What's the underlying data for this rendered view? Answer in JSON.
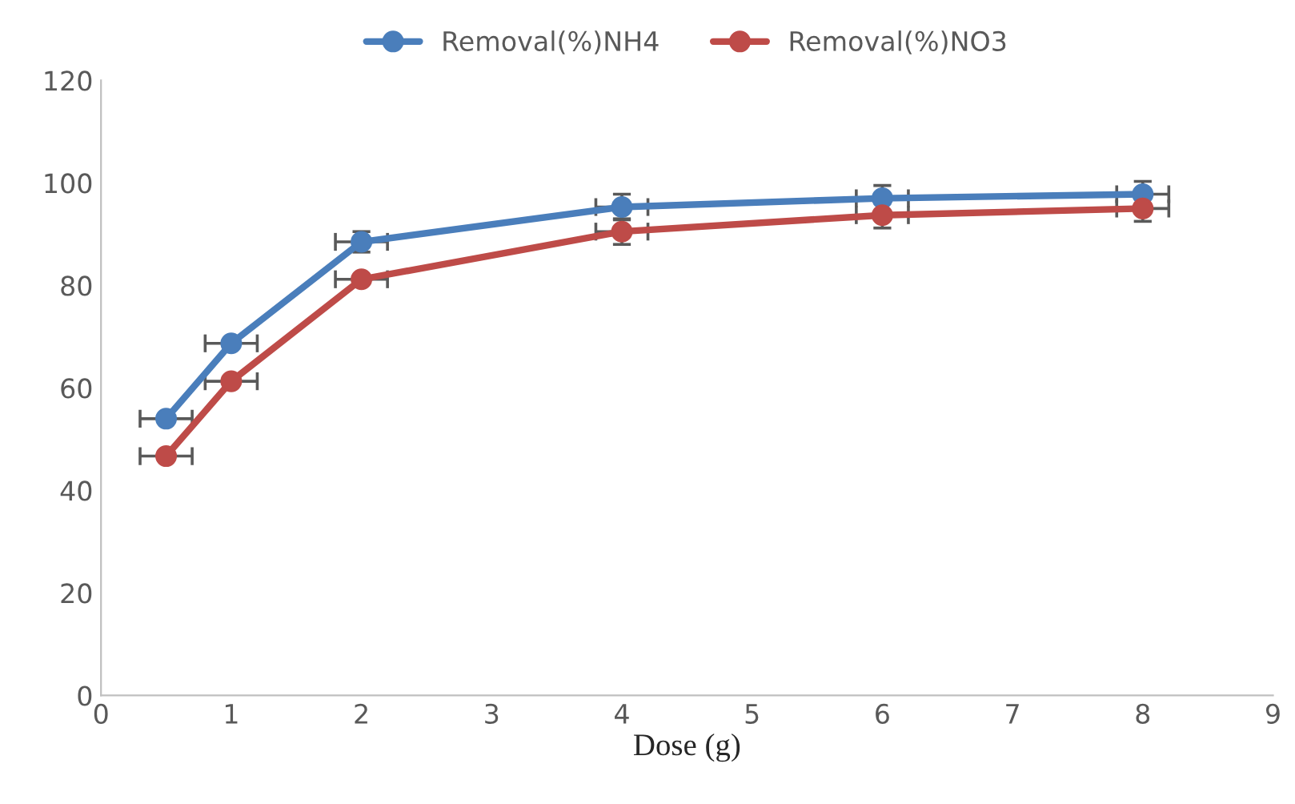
{
  "chart_data": {
    "type": "line",
    "xlabel": "Dose (g)",
    "x": [
      0.5,
      1,
      2,
      4,
      6,
      8
    ],
    "series": [
      {
        "name": "Removal(%)NH4",
        "color": "#4a7ebb",
        "values": [
          54,
          68.7,
          88.5,
          95.3,
          97,
          97.8
        ],
        "errors": [
          null,
          null,
          2,
          2.5,
          2.5,
          2.5
        ],
        "xerrors": [
          0.2,
          0.2,
          0.2,
          0.2,
          0.2,
          0.2
        ]
      },
      {
        "name": "Removal(%)NO3",
        "color": "#be4b48",
        "values": [
          46.7,
          61.3,
          81.2,
          90.5,
          93.7,
          95
        ],
        "errors": [
          null,
          null,
          null,
          2.5,
          2.5,
          2.5
        ],
        "xerrors": [
          0.2,
          0.2,
          0.2,
          0.2,
          0.2,
          0.2
        ]
      }
    ],
    "xlim": [
      0,
      9
    ],
    "xticks": [
      0,
      1,
      2,
      3,
      4,
      5,
      6,
      7,
      8,
      9
    ],
    "ylim": [
      0,
      120
    ],
    "yticks": [
      0,
      20,
      40,
      60,
      80,
      100,
      120
    ],
    "marker": "circle",
    "line_style": "solid",
    "legend": "top",
    "grid": false
  }
}
